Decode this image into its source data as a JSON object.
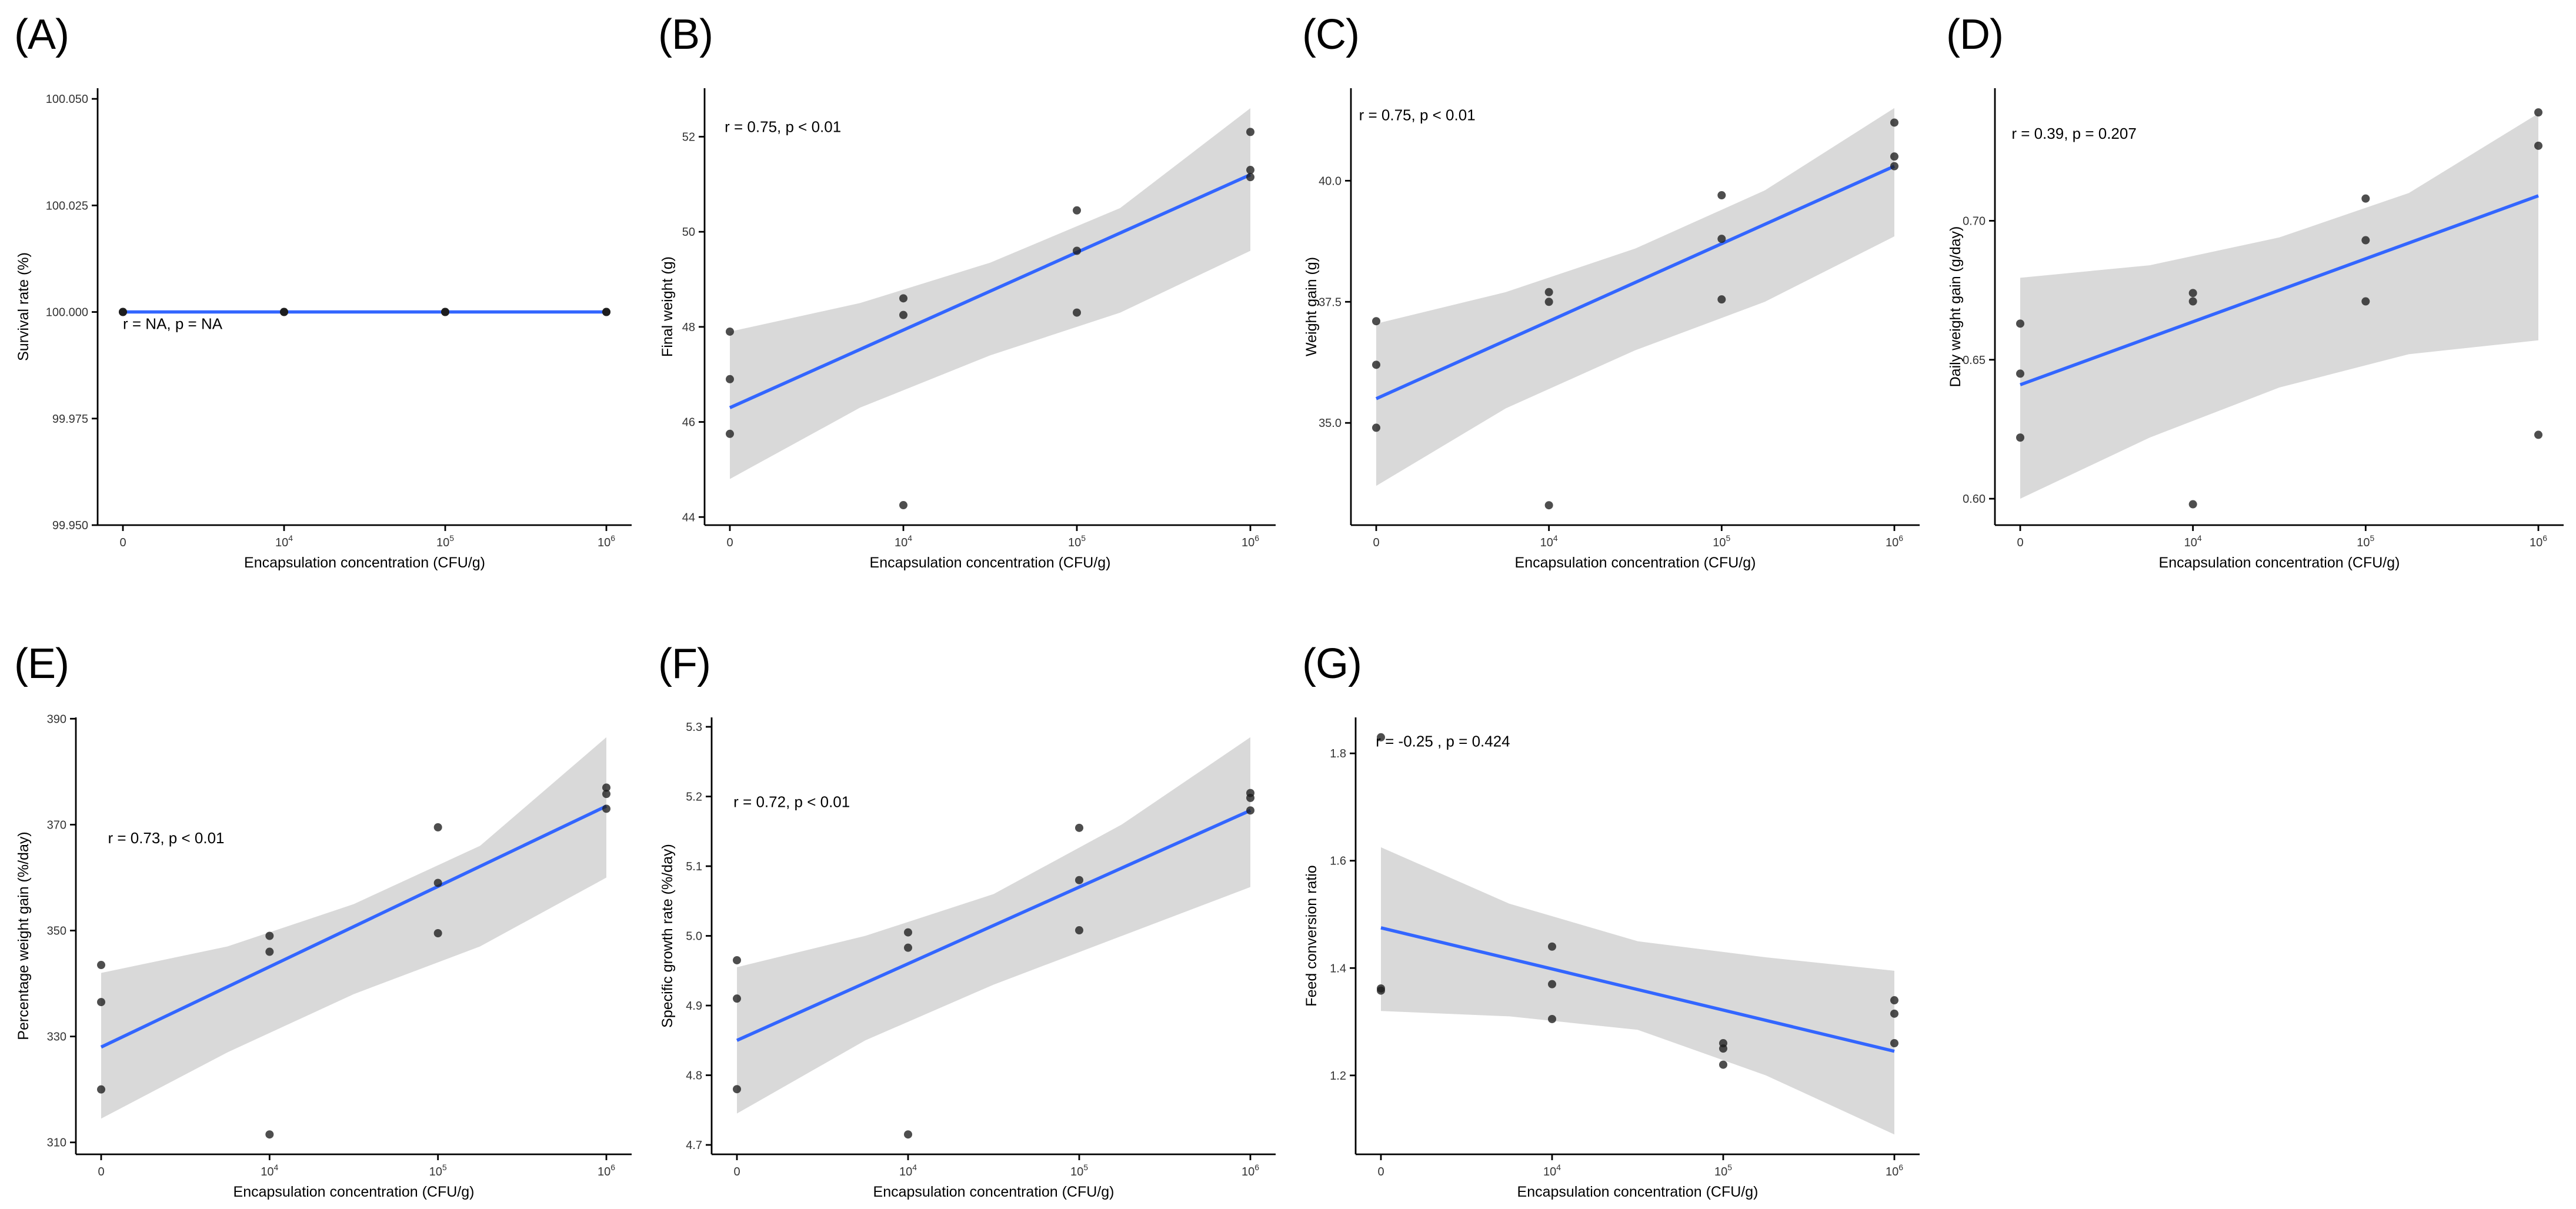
{
  "figure": {
    "background": "#ffffff",
    "x_axis_label": "Encapsulation concentration (CFU/g)",
    "x_tick_labels": [
      "0",
      "10^4",
      "10^5",
      "10^6"
    ],
    "colors": {
      "regression_line": "#3366FF",
      "confidence_band": "#D9D9D9",
      "point": "#1C1C1C",
      "axis": "#000000",
      "text": "#000000",
      "tick_text": "#333333"
    }
  },
  "chart_data": [
    {
      "panel": "(A)",
      "type": "scatter",
      "xlabel": "Encapsulation concentration (CFU/g)",
      "ylabel": "Survival rate (%)",
      "annotation": "r = NA, p = NA",
      "annotation_xy": [
        0,
        99.996
      ],
      "x_categories": [
        "0",
        "10^4",
        "10^5",
        "10^6"
      ],
      "ylim": [
        99.95,
        100.0525
      ],
      "ytick_values": [
        99.95,
        99.975,
        100.0,
        100.025,
        100.05
      ],
      "ytick_labels": [
        "99.950",
        "99.975",
        "100.000",
        "100.025",
        "100.050"
      ],
      "points_by_category": [
        [
          100.0,
          100.0,
          100.0
        ],
        [
          100.0,
          100.0,
          100.0
        ],
        [
          100.0,
          100.0,
          100.0
        ],
        [
          100.0,
          100.0,
          100.0
        ]
      ],
      "regression": {
        "x": [
          0,
          3
        ],
        "y": [
          100.0,
          100.0
        ]
      },
      "band": null,
      "layout": {
        "left_margin": 166,
        "top_offset": 0
      }
    },
    {
      "panel": "(B)",
      "type": "scatter",
      "xlabel": "Encapsulation concentration (CFU/g)",
      "ylabel": "Final weight (g)",
      "annotation": "r = 0.75, p < 0.01",
      "annotation_xy": [
        -0.03,
        52.1
      ],
      "x_categories": [
        "0",
        "10^4",
        "10^5",
        "10^6"
      ],
      "ylim": [
        43.83,
        53.02
      ],
      "ytick_values": [
        44,
        46,
        48,
        50,
        52
      ],
      "ytick_labels": [
        "44",
        "46",
        "48",
        "50",
        "52"
      ],
      "points_by_category": [
        [
          47.9,
          46.9,
          45.75
        ],
        [
          48.6,
          48.25,
          44.25
        ],
        [
          50.45,
          49.6,
          48.3
        ],
        [
          52.1,
          51.3,
          51.15
        ]
      ],
      "regression": {
        "x": [
          0,
          3
        ],
        "y": [
          46.3,
          51.2
        ]
      },
      "band": {
        "x": [
          0,
          0.75,
          1.5,
          2.25,
          3
        ],
        "lower": [
          44.8,
          46.3,
          47.4,
          48.3,
          49.6
        ],
        "upper": [
          47.9,
          48.5,
          49.35,
          50.5,
          52.6
        ]
      },
      "layout": {
        "left_margin": 103,
        "top_offset": 0
      }
    },
    {
      "panel": "(C)",
      "type": "scatter",
      "xlabel": "Encapsulation concentration (CFU/g)",
      "ylabel": "Weight gain (g)",
      "annotation": "r = 0.75, p < 0.01",
      "annotation_xy": [
        -0.1,
        41.25
      ],
      "x_categories": [
        "0",
        "10^4",
        "10^5",
        "10^6"
      ],
      "ylim": [
        32.89,
        41.91
      ],
      "ytick_values": [
        35.0,
        37.5,
        40.0
      ],
      "ytick_labels": [
        "35.0",
        "37.5",
        "40.0"
      ],
      "points_by_category": [
        [
          37.1,
          36.2,
          34.9
        ],
        [
          37.7,
          37.5,
          33.3
        ],
        [
          39.7,
          38.8,
          37.55
        ],
        [
          41.2,
          40.5,
          40.3
        ]
      ],
      "regression": {
        "x": [
          0,
          3
        ],
        "y": [
          35.5,
          40.3
        ]
      },
      "band": {
        "x": [
          0,
          0.75,
          1.5,
          2.25,
          3
        ],
        "lower": [
          33.7,
          35.3,
          36.5,
          37.5,
          38.85
        ],
        "upper": [
          37.05,
          37.7,
          38.6,
          39.8,
          41.5
        ]
      },
      "layout": {
        "left_margin": 107,
        "top_offset": 0
      }
    },
    {
      "panel": "(D)",
      "type": "scatter",
      "xlabel": "Encapsulation concentration (CFU/g)",
      "ylabel": "Daily weight gain (g/day)",
      "annotation": "r = 0.39, p = 0.207",
      "annotation_xy": [
        -0.05,
        0.7295
      ],
      "x_categories": [
        "0",
        "10^4",
        "10^5",
        "10^6"
      ],
      "ylim": [
        0.5905,
        0.7477
      ],
      "ytick_values": [
        0.6,
        0.65,
        0.7
      ],
      "ytick_labels": [
        "0.60",
        "0.65",
        "0.70"
      ],
      "points_by_category": [
        [
          0.663,
          0.645,
          0.622
        ],
        [
          0.674,
          0.671,
          0.598
        ],
        [
          0.708,
          0.693,
          0.671
        ],
        [
          0.739,
          0.727,
          0.623
        ]
      ],
      "regression": {
        "x": [
          0,
          3
        ],
        "y": [
          0.641,
          0.709
        ]
      },
      "band": {
        "x": [
          0,
          0.75,
          1.5,
          2.25,
          3
        ],
        "lower": [
          0.6,
          0.622,
          0.64,
          0.652,
          0.657
        ],
        "upper": [
          0.6795,
          0.684,
          0.694,
          0.71,
          0.7386
        ]
      },
      "layout": {
        "left_margin": 107,
        "top_offset": 0
      }
    },
    {
      "panel": "(E)",
      "type": "scatter",
      "xlabel": "Encapsulation concentration (CFU/g)",
      "ylabel": "Percentage weight gain (%/day)",
      "annotation": "r = 0.73, p < 0.01",
      "annotation_xy": [
        0.04,
        366.5
      ],
      "x_categories": [
        "0",
        "10^4",
        "10^5",
        "10^6"
      ],
      "ylim": [
        307.75,
        390.25
      ],
      "ytick_values": [
        310,
        330,
        350,
        370,
        390
      ],
      "ytick_labels": [
        "310",
        "330",
        "350",
        "370",
        "390"
      ],
      "points_by_category": [
        [
          343.5,
          336.5,
          320
        ],
        [
          349,
          346,
          311.5
        ],
        [
          369.5,
          359,
          349.5
        ],
        [
          377,
          375.8,
          373
        ]
      ],
      "regression": {
        "x": [
          0,
          3
        ],
        "y": [
          328,
          373.5
        ]
      },
      "band": {
        "x": [
          0,
          0.75,
          1.5,
          2.25,
          3
        ],
        "lower": [
          314.5,
          327,
          338,
          347,
          360
        ],
        "upper": [
          342,
          347,
          355,
          366,
          386.5
        ]
      },
      "layout": {
        "left_margin": 129,
        "top_offset": 42
      }
    },
    {
      "panel": "(F)",
      "type": "scatter",
      "xlabel": "Encapsulation concentration (CFU/g)",
      "ylabel": "Specific growth rate (%/day)",
      "annotation": "r = 0.72, p < 0.01",
      "annotation_xy": [
        -0.02,
        5.185
      ],
      "x_categories": [
        "0",
        "10^4",
        "10^5",
        "10^6"
      ],
      "ylim": [
        4.6865,
        5.3135
      ],
      "ytick_values": [
        4.7,
        4.8,
        4.9,
        5.0,
        5.1,
        5.2,
        5.3
      ],
      "ytick_labels": [
        "4.7",
        "4.8",
        "4.9",
        "5.0",
        "5.1",
        "5.2",
        "5.3"
      ],
      "points_by_category": [
        [
          4.965,
          4.91,
          4.78
        ],
        [
          5.005,
          4.983,
          4.715
        ],
        [
          5.155,
          5.08,
          5.008
        ],
        [
          5.205,
          5.198,
          5.18
        ]
      ],
      "regression": {
        "x": [
          0,
          3
        ],
        "y": [
          4.85,
          5.18
        ]
      },
      "band": {
        "x": [
          0,
          0.75,
          1.5,
          2.25,
          3
        ],
        "lower": [
          4.745,
          4.85,
          4.93,
          5.0,
          5.07
        ],
        "upper": [
          4.955,
          5.0,
          5.06,
          5.16,
          5.285
        ]
      },
      "layout": {
        "left_margin": 115,
        "top_offset": 42
      }
    },
    {
      "panel": "(G)",
      "type": "scatter",
      "xlabel": "Encapsulation concentration (CFU/g)",
      "ylabel": "Feed conversion ratio",
      "annotation": "r = -0.25 , p = 0.424",
      "annotation_xy": [
        -0.03,
        1.813
      ],
      "x_categories": [
        "0",
        "10^4",
        "10^5",
        "10^6"
      ],
      "ylim": [
        1.053,
        1.867
      ],
      "ytick_values": [
        1.2,
        1.4,
        1.6,
        1.8
      ],
      "ytick_labels": [
        "1.2",
        "1.4",
        "1.6",
        "1.8"
      ],
      "points_by_category": [
        [
          1.83,
          1.362,
          1.358
        ],
        [
          1.44,
          1.37,
          1.305
        ],
        [
          1.26,
          1.25,
          1.22
        ],
        [
          1.34,
          1.315,
          1.26
        ]
      ],
      "regression": {
        "x": [
          0,
          3
        ],
        "y": [
          1.475,
          1.245
        ]
      },
      "band": {
        "x": [
          0,
          0.75,
          1.5,
          2.25,
          3
        ],
        "lower": [
          1.32,
          1.31,
          1.285,
          1.2,
          1.09
        ],
        "upper": [
          1.625,
          1.52,
          1.45,
          1.42,
          1.395
        ]
      },
      "layout": {
        "left_margin": 115,
        "top_offset": 42
      }
    }
  ]
}
